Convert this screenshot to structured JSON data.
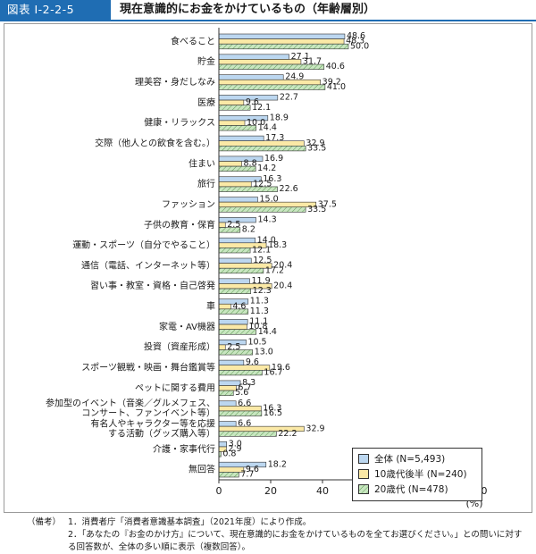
{
  "header": {
    "figure_id": "図表 I-2-2-5",
    "title": "現在意識的にお金をかけているもの（年齢層別）"
  },
  "colors": {
    "overall": "#bcd7f0",
    "teens": "#fbe9a6",
    "twenties": "#c8e6c0",
    "stroke": "#333333",
    "header": "#1f6db3"
  },
  "legend": {
    "items": [
      {
        "label": "全体 (N=5,493)",
        "color": "#bcd7f0",
        "hatched": false
      },
      {
        "label": "10歳代後半 (N=240)",
        "color": "#fbe9a6",
        "hatched": false
      },
      {
        "label": "20歳代 (N=478)",
        "color": "#c8e6c0",
        "hatched": true
      }
    ]
  },
  "chart_data": {
    "type": "bar",
    "orientation": "horizontal",
    "xlim": [
      0,
      100
    ],
    "xticks": [
      0,
      20,
      40,
      60,
      80,
      100
    ],
    "xlabel": "(%)",
    "categories": [
      [
        "食べること"
      ],
      [
        "貯金"
      ],
      [
        "理美容・身だしなみ"
      ],
      [
        "医療"
      ],
      [
        "健康・リラックス"
      ],
      [
        "交際（他人との飲食を含む。）"
      ],
      [
        "住まい"
      ],
      [
        "旅行"
      ],
      [
        "ファッション"
      ],
      [
        "子供の教育・保育"
      ],
      [
        "運動・スポーツ（自分でやること）"
      ],
      [
        "通信（電話、インターネット等）"
      ],
      [
        "習い事・教室・資格・自己啓発"
      ],
      [
        "車"
      ],
      [
        "家電・AV機器"
      ],
      [
        "投資（資産形成）"
      ],
      [
        "スポーツ観戦・映画・舞台鑑賞等"
      ],
      [
        "ペットに関する費用"
      ],
      [
        "参加型のイベント（音楽／グルメフェス、",
        "コンサート、ファンイベント等）"
      ],
      [
        "有名人やキャラクター等を応援",
        "する活動（グッズ購入等）"
      ],
      [
        "介護・家事代行"
      ],
      [
        "無回答"
      ]
    ],
    "series": [
      {
        "name": "全体 (N=5,493)",
        "values": [
          48.6,
          27.1,
          24.9,
          22.7,
          18.9,
          17.3,
          16.9,
          16.3,
          15.0,
          14.3,
          14.0,
          12.5,
          11.9,
          11.3,
          11.1,
          10.5,
          9.6,
          8.3,
          6.6,
          6.6,
          3.0,
          18.2
        ]
      },
      {
        "name": "10歳代後半 (N=240)",
        "values": [
          48.3,
          31.7,
          39.2,
          9.6,
          10.0,
          32.9,
          8.8,
          12.5,
          37.5,
          2.5,
          18.3,
          20.4,
          20.4,
          4.6,
          10.8,
          2.5,
          19.6,
          6.7,
          16.3,
          32.9,
          2.9,
          9.6
        ]
      },
      {
        "name": "20歳代 (N=478)",
        "values": [
          50.0,
          40.6,
          41.0,
          12.1,
          14.4,
          33.5,
          14.2,
          22.6,
          33.5,
          8.2,
          12.1,
          17.2,
          12.3,
          11.3,
          14.4,
          13.0,
          16.7,
          5.6,
          16.5,
          22.2,
          0.8,
          7.7
        ]
      }
    ]
  },
  "notes": {
    "label": "（備考）",
    "lines": [
      "1．消費者庁「消費者意識基本調査」（2021年度）により作成。",
      "2．「あなたの『お金のかけ方』について、現在意識的にお金をかけているものを全てお選びください。」との問いに対する回答数が、全体の多い順に表示（複数回答）。"
    ]
  }
}
